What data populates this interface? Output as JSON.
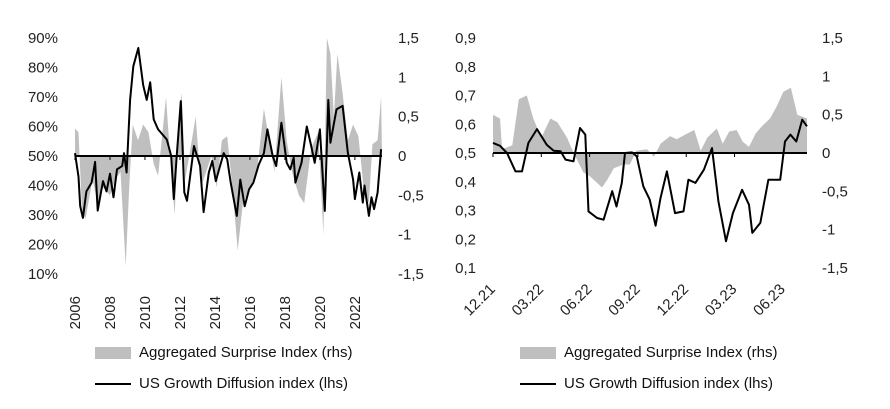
{
  "colors": {
    "area": "#bfbfbf",
    "line": "#000000"
  },
  "chart_data": [
    {
      "type": "area+line",
      "title": "",
      "x_ticks": [
        "2006",
        "2008",
        "2010",
        "2012",
        "2014",
        "2016",
        "2018",
        "2020",
        "2022"
      ],
      "x_tick_values": [
        2006,
        2008,
        2010,
        2012,
        2014,
        2016,
        2018,
        2020,
        2022
      ],
      "xlim": [
        2006,
        2023.55
      ],
      "y_left_ticks": [
        "90%",
        "80%",
        "70%",
        "60%",
        "50%",
        "40%",
        "30%",
        "20%",
        "10%"
      ],
      "y_left_tick_values": [
        90,
        80,
        70,
        60,
        50,
        40,
        30,
        20,
        10
      ],
      "ylim_left": [
        10,
        90
      ],
      "y_right_ticks": [
        "1,5",
        "1",
        "0,5",
        "0",
        "-0,5",
        "-1",
        "-1,5"
      ],
      "y_right_tick_values": [
        1.5,
        1,
        0.5,
        0,
        -0.5,
        -1,
        -1.5
      ],
      "ylim_right": [
        -1.5,
        1.5
      ],
      "legend_position": "bottom",
      "legend": {
        "area": "Aggregated Surprise Index (rhs)",
        "line": "US Growth Diffusion index (lhs)"
      },
      "series": [
        {
          "name": "Aggregated Surprise Index (rhs)",
          "kind": "area",
          "axis": "right",
          "x": [
            2006.0,
            2006.2,
            2006.4,
            2006.6,
            2007.0,
            2007.3,
            2007.6,
            2008.0,
            2008.3,
            2008.6,
            2008.9,
            2009.1,
            2009.3,
            2009.6,
            2009.9,
            2010.2,
            2010.5,
            2010.75,
            2011.0,
            2011.2,
            2011.5,
            2011.7,
            2011.9,
            2012.1,
            2012.3,
            2012.6,
            2012.9,
            2013.2,
            2013.5,
            2013.8,
            2014.1,
            2014.4,
            2014.7,
            2015.0,
            2015.3,
            2015.6,
            2016.0,
            2016.4,
            2016.8,
            2017.1,
            2017.4,
            2017.8,
            2018.1,
            2018.4,
            2018.8,
            2019.1,
            2019.5,
            2019.9,
            2020.2,
            2020.4,
            2020.6,
            2020.8,
            2021.0,
            2021.3,
            2021.6,
            2021.9,
            2022.2,
            2022.5,
            2022.8,
            2023.0,
            2023.3,
            2023.5,
            2023.55
          ],
          "y": [
            0.35,
            0.3,
            -0.7,
            -0.8,
            -0.3,
            -0.6,
            -0.4,
            -0.5,
            -0.3,
            -0.2,
            -1.4,
            -0.4,
            0.4,
            0.2,
            0.4,
            0.3,
            -0.1,
            -0.25,
            0.3,
            0.75,
            -0.2,
            -0.75,
            0.35,
            0.8,
            -0.3,
            0.1,
            0.5,
            -0.4,
            -0.2,
            0.0,
            -0.4,
            0.2,
            0.25,
            -0.4,
            -1.2,
            -0.6,
            -0.4,
            -0.2,
            0.6,
            0.2,
            -0.2,
            1.0,
            0.2,
            -0.2,
            -0.5,
            -0.6,
            0.1,
            0.3,
            -1.0,
            1.5,
            1.3,
            0.5,
            1.3,
            0.8,
            0.2,
            0.4,
            0.25,
            -0.4,
            -0.6,
            0.15,
            0.2,
            0.75,
            0.0
          ]
        },
        {
          "name": "US Growth Diffusion index (lhs)",
          "kind": "line",
          "axis": "left",
          "x": [
            2006.0,
            2006.2,
            2006.3,
            2006.45,
            2006.65,
            2006.95,
            2007.15,
            2007.3,
            2007.6,
            2007.8,
            2008.0,
            2008.2,
            2008.4,
            2008.7,
            2008.8,
            2008.95,
            2009.15,
            2009.33,
            2009.62,
            2009.9,
            2010.1,
            2010.3,
            2010.5,
            2010.75,
            2011.25,
            2011.5,
            2011.65,
            2011.8,
            2012.05,
            2012.25,
            2012.4,
            2012.8,
            2013.15,
            2013.35,
            2013.65,
            2013.85,
            2014.05,
            2014.5,
            2014.7,
            2014.9,
            2015.25,
            2015.45,
            2015.7,
            2015.95,
            2016.2,
            2016.5,
            2016.8,
            2017.0,
            2017.3,
            2017.5,
            2017.8,
            2018.1,
            2018.3,
            2018.5,
            2018.6,
            2018.95,
            2019.25,
            2019.5,
            2019.7,
            2020.0,
            2020.28,
            2020.48,
            2020.6,
            2020.95,
            2021.3,
            2021.6,
            2021.9,
            2022.0,
            2022.25,
            2022.45,
            2022.55,
            2022.8,
            2022.95,
            2023.1,
            2023.3,
            2023.5
          ],
          "y": [
            51,
            43,
            33,
            29,
            38,
            41,
            48,
            31.5,
            41.5,
            38,
            44,
            36,
            45.5,
            46.6,
            51,
            44.4,
            69,
            80.4,
            86.6,
            74,
            69,
            75,
            62.4,
            59,
            55.6,
            50,
            35.4,
            49,
            68.6,
            37.7,
            34.8,
            53.4,
            46.6,
            31,
            44.4,
            48.3,
            41.5,
            51,
            48.9,
            41,
            29.7,
            42,
            33,
            38.7,
            41,
            47,
            51,
            59,
            50,
            46.6,
            61.3,
            47.7,
            45.5,
            49.4,
            41,
            47.7,
            60,
            53.4,
            47.7,
            59,
            31.4,
            69,
            54.5,
            65.8,
            67,
            51,
            42,
            35.4,
            44.4,
            34.2,
            40,
            29.7,
            36,
            32,
            37.6,
            52.3
          ]
        }
      ]
    },
    {
      "type": "area+line",
      "title": "",
      "x_ticks": [
        "12.21",
        "03.22",
        "06.22",
        "09.22",
        "12.22",
        "03.23",
        "06.23"
      ],
      "x_tick_values": [
        "2021-12-01",
        "2022-03-01",
        "2022-06-01",
        "2022-09-01",
        "2022-12-01",
        "2023-03-01",
        "2023-06-01"
      ],
      "xlim": [
        "2021-12-01",
        "2023-07-16"
      ],
      "y_left_ticks": [
        "0,9",
        "0,8",
        "0,7",
        "0,6",
        "0,5",
        "0,4",
        "0,3",
        "0,2",
        "0,1"
      ],
      "y_left_tick_values": [
        0.9,
        0.8,
        0.7,
        0.6,
        0.5,
        0.4,
        0.3,
        0.2,
        0.1
      ],
      "ylim_left": [
        0.1,
        0.9
      ],
      "y_right_ticks": [
        "1,5",
        "1",
        "0,5",
        "0",
        "-0,5",
        "-1",
        "-1,5"
      ],
      "y_right_tick_values": [
        1.5,
        1,
        0.5,
        0,
        -0.5,
        -1,
        -1.5
      ],
      "ylim_right": [
        -1.5,
        1.5
      ],
      "legend_position": "bottom",
      "legend": {
        "area": "Aggregated Surprise Index (rhs)",
        "line": "US Growth Diffusion index (lhs)"
      },
      "series": [
        {
          "name": "Aggregated Surprise Index (rhs)",
          "kind": "area",
          "axis": "right",
          "x": [
            "2021-12-01",
            "2021-12-14",
            "2021-12-18",
            "2022-01-07",
            "2022-01-19",
            "2022-02-04",
            "2022-02-16",
            "2022-03-01",
            "2022-03-18",
            "2022-04-01",
            "2022-04-19",
            "2022-04-28",
            "2022-05-19",
            "2022-06-01",
            "2022-06-24",
            "2022-07-04",
            "2022-07-16",
            "2022-08-04",
            "2022-08-16",
            "2022-08-28",
            "2022-09-18",
            "2022-10-01",
            "2022-10-13",
            "2022-11-01",
            "2022-11-13",
            "2022-12-02",
            "2022-12-16",
            "2022-12-28",
            "2023-01-10",
            "2023-01-28",
            "2023-02-09",
            "2023-02-21",
            "2023-03-05",
            "2023-03-16",
            "2023-03-28",
            "2023-04-10",
            "2023-04-22",
            "2023-05-07",
            "2023-05-19",
            "2023-06-02",
            "2023-06-16",
            "2023-06-28",
            "2023-07-16"
          ],
          "y": [
            0.5,
            0.45,
            0.05,
            0.1,
            0.7,
            0.75,
            0.45,
            0.2,
            0.45,
            0.4,
            0.2,
            0.05,
            -0.25,
            -0.3,
            -0.45,
            -0.35,
            -0.2,
            -0.15,
            -0.15,
            0.03,
            0.05,
            -0.05,
            0.12,
            0.22,
            0.18,
            0.25,
            0.3,
            0.03,
            0.2,
            0.32,
            0.12,
            0.28,
            0.3,
            0.15,
            0.08,
            0.25,
            0.35,
            0.45,
            0.6,
            0.8,
            0.85,
            0.5,
            0.45
          ]
        },
        {
          "name": "US Growth Diffusion index (lhs)",
          "kind": "line",
          "axis": "left",
          "x": [
            "2021-12-01",
            "2021-12-14",
            "2021-12-27",
            "2022-01-13",
            "2022-01-25",
            "2022-02-07",
            "2022-02-23",
            "2022-03-11",
            "2022-03-24",
            "2022-04-07",
            "2022-04-16",
            "2022-05-01",
            "2022-05-13",
            "2022-05-23",
            "2022-05-29",
            "2022-06-15",
            "2022-06-27",
            "2022-07-13",
            "2022-07-21",
            "2022-08-01",
            "2022-08-07",
            "2022-08-20",
            "2022-08-29",
            "2022-09-11",
            "2022-09-23",
            "2022-10-04",
            "2022-10-13",
            "2022-10-25",
            "2022-11-10",
            "2022-11-26",
            "2022-12-05",
            "2022-12-18",
            "2023-01-04",
            "2023-01-19",
            "2023-02-01",
            "2023-02-15",
            "2023-02-28",
            "2023-03-15",
            "2023-03-28",
            "2023-04-04",
            "2023-04-19",
            "2023-05-04",
            "2023-05-26",
            "2023-06-05",
            "2023-06-15",
            "2023-06-26",
            "2023-07-07",
            "2023-07-16"
          ],
          "y": [
            0.535,
            0.525,
            0.5,
            0.436,
            0.436,
            0.535,
            0.583,
            0.529,
            0.508,
            0.506,
            0.477,
            0.471,
            0.587,
            0.564,
            0.297,
            0.274,
            0.268,
            0.367,
            0.314,
            0.396,
            0.5,
            0.502,
            0.488,
            0.384,
            0.338,
            0.247,
            0.343,
            0.436,
            0.291,
            0.297,
            0.407,
            0.396,
            0.442,
            0.517,
            0.332,
            0.193,
            0.291,
            0.372,
            0.32,
            0.222,
            0.257,
            0.407,
            0.407,
            0.54,
            0.564,
            0.54,
            0.616,
            0.593
          ]
        }
      ]
    }
  ]
}
